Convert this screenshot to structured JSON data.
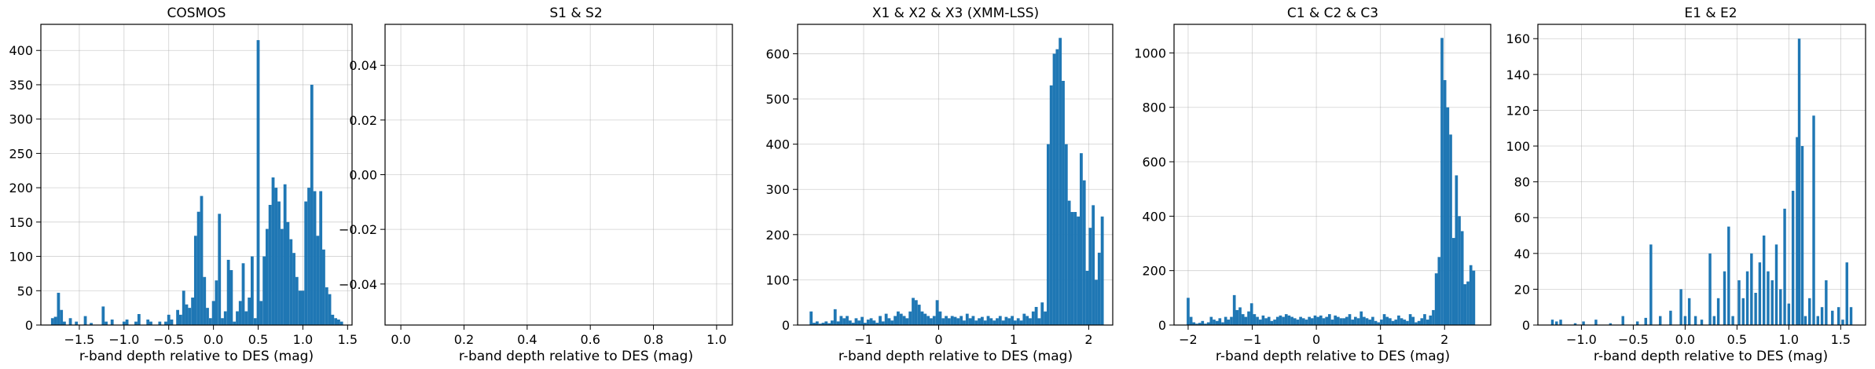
{
  "figure": {
    "accent": "#1f77b4"
  },
  "chart_data": [
    {
      "type": "bar",
      "title": "COSMOS",
      "xlabel": "r-band depth relative to DES (mag)",
      "ylabel": "",
      "xlim": [
        -1.93,
        1.55
      ],
      "ylim": [
        0,
        438
      ],
      "xticks": [
        -1.5,
        -1.0,
        -0.5,
        0.0,
        0.5,
        1.0,
        1.5
      ],
      "xtick_labels": [
        "−1.5",
        "−1.0",
        "−0.5",
        "0.0",
        "0.5",
        "1.0",
        "1.5"
      ],
      "yticks": [
        0,
        50,
        100,
        150,
        200,
        250,
        300,
        350,
        400
      ],
      "ytick_labels": [
        "0",
        "50",
        "100",
        "150",
        "200",
        "250",
        "300",
        "350",
        "400"
      ],
      "grid": true,
      "bin_width": 0.0334,
      "x": [
        -1.8,
        -1.767,
        -1.733,
        -1.7,
        -1.667,
        -1.6,
        -1.533,
        -1.433,
        -1.367,
        -1.233,
        -1.2,
        -1.133,
        -1.0,
        -0.967,
        -0.867,
        -0.833,
        -0.733,
        -0.7,
        -0.6,
        -0.533,
        -0.5,
        -0.467,
        -0.4,
        -0.367,
        -0.333,
        -0.3,
        -0.267,
        -0.233,
        -0.2,
        -0.167,
        -0.133,
        -0.1,
        -0.067,
        -0.033,
        0.0,
        0.033,
        0.067,
        0.1,
        0.133,
        0.167,
        0.2,
        0.233,
        0.267,
        0.3,
        0.333,
        0.367,
        0.4,
        0.433,
        0.467,
        0.5,
        0.533,
        0.567,
        0.6,
        0.633,
        0.667,
        0.7,
        0.733,
        0.767,
        0.8,
        0.833,
        0.867,
        0.9,
        0.933,
        0.967,
        1.0,
        1.033,
        1.067,
        1.1,
        1.133,
        1.167,
        1.2,
        1.233,
        1.267,
        1.3,
        1.333,
        1.367,
        1.4,
        1.433
      ],
      "values": [
        10,
        12,
        47,
        22,
        5,
        10,
        5,
        13,
        3,
        27,
        5,
        8,
        5,
        8,
        5,
        16,
        8,
        5,
        5,
        5,
        15,
        8,
        22,
        15,
        50,
        30,
        25,
        40,
        130,
        165,
        188,
        70,
        25,
        10,
        35,
        65,
        162,
        10,
        20,
        95,
        80,
        5,
        20,
        35,
        90,
        20,
        40,
        100,
        10,
        415,
        35,
        100,
        140,
        175,
        215,
        200,
        180,
        140,
        205,
        150,
        125,
        105,
        70,
        50,
        50,
        180,
        200,
        350,
        195,
        130,
        195,
        110,
        55,
        45,
        15,
        10,
        8,
        5
      ]
    },
    {
      "type": "bar",
      "title": "S1 & S2",
      "xlabel": "r-band depth relative to DES (mag)",
      "ylabel": "",
      "xlim": [
        -0.05,
        1.05
      ],
      "ylim": [
        -0.055,
        0.055
      ],
      "xticks": [
        0.0,
        0.2,
        0.4,
        0.6,
        0.8,
        1.0
      ],
      "xtick_labels": [
        "0.0",
        "0.2",
        "0.4",
        "0.6",
        "0.8",
        "1.0"
      ],
      "yticks": [
        -0.04,
        -0.02,
        0.0,
        0.02,
        0.04
      ],
      "ytick_labels": [
        "−0.04",
        "−0.02",
        "0.00",
        "0.02",
        "0.04"
      ],
      "grid": true,
      "bin_width": 0.01,
      "x": [],
      "values": []
    },
    {
      "type": "bar",
      "title": "X1 & X2 & X3 (XMM-LSS)",
      "xlabel": "r-band depth relative to DES (mag)",
      "ylabel": "",
      "xlim": [
        -1.88,
        2.32
      ],
      "ylim": [
        0,
        665
      ],
      "xticks": [
        -1,
        0,
        1,
        2
      ],
      "xtick_labels": [
        "−1",
        "0",
        "1",
        "2"
      ],
      "yticks": [
        0,
        100,
        200,
        300,
        400,
        500,
        600
      ],
      "ytick_labels": [
        "0",
        "100",
        "200",
        "300",
        "400",
        "500",
        "600"
      ],
      "grid": true,
      "bin_width": 0.04,
      "x": [
        -1.7,
        -1.66,
        -1.62,
        -1.58,
        -1.54,
        -1.5,
        -1.46,
        -1.42,
        -1.38,
        -1.34,
        -1.3,
        -1.26,
        -1.22,
        -1.18,
        -1.14,
        -1.1,
        -1.06,
        -1.02,
        -0.98,
        -0.94,
        -0.9,
        -0.86,
        -0.82,
        -0.78,
        -0.74,
        -0.7,
        -0.66,
        -0.62,
        -0.58,
        -0.54,
        -0.5,
        -0.46,
        -0.42,
        -0.38,
        -0.34,
        -0.3,
        -0.26,
        -0.22,
        -0.18,
        -0.14,
        -0.1,
        -0.06,
        -0.02,
        0.02,
        0.06,
        0.1,
        0.14,
        0.18,
        0.22,
        0.26,
        0.3,
        0.34,
        0.38,
        0.42,
        0.46,
        0.5,
        0.54,
        0.58,
        0.62,
        0.66,
        0.7,
        0.74,
        0.78,
        0.82,
        0.86,
        0.9,
        0.94,
        0.98,
        1.02,
        1.06,
        1.1,
        1.14,
        1.18,
        1.22,
        1.26,
        1.3,
        1.34,
        1.38,
        1.42,
        1.46,
        1.5,
        1.54,
        1.58,
        1.62,
        1.66,
        1.7,
        1.74,
        1.78,
        1.82,
        1.86,
        1.9,
        1.94,
        1.98,
        2.02,
        2.06,
        2.1,
        2.14,
        2.18
      ],
      "values": [
        30,
        5,
        8,
        3,
        5,
        8,
        4,
        10,
        35,
        8,
        20,
        15,
        20,
        10,
        5,
        15,
        10,
        18,
        5,
        12,
        15,
        10,
        5,
        20,
        8,
        25,
        15,
        10,
        20,
        30,
        25,
        20,
        15,
        30,
        60,
        55,
        45,
        30,
        25,
        20,
        15,
        20,
        55,
        30,
        15,
        20,
        15,
        20,
        18,
        15,
        20,
        10,
        25,
        15,
        20,
        10,
        15,
        18,
        10,
        20,
        15,
        10,
        15,
        20,
        10,
        18,
        15,
        20,
        10,
        15,
        10,
        25,
        20,
        15,
        30,
        40,
        15,
        50,
        30,
        400,
        530,
        600,
        610,
        635,
        540,
        400,
        275,
        250,
        250,
        240,
        380,
        320,
        120,
        215,
        265,
        100,
        160,
        240
      ]
    },
    {
      "type": "bar",
      "title": "C1 & C2 & C3",
      "xlabel": "r-band depth relative to DES (mag)",
      "ylabel": "",
      "xlim": [
        -2.22,
        2.72
      ],
      "ylim": [
        0,
        1105
      ],
      "xticks": [
        -2,
        -1,
        0,
        1,
        2
      ],
      "xtick_labels": [
        "−2",
        "−1",
        "0",
        "1",
        "2"
      ],
      "yticks": [
        0,
        200,
        400,
        600,
        800,
        1000
      ],
      "ytick_labels": [
        "0",
        "200",
        "400",
        "600",
        "800",
        "1000"
      ],
      "grid": true,
      "bin_width": 0.045,
      "x": [
        -2.0,
        -1.955,
        -1.91,
        -1.865,
        -1.82,
        -1.775,
        -1.73,
        -1.685,
        -1.64,
        -1.595,
        -1.55,
        -1.505,
        -1.46,
        -1.415,
        -1.37,
        -1.325,
        -1.28,
        -1.235,
        -1.19,
        -1.145,
        -1.1,
        -1.055,
        -1.01,
        -0.965,
        -0.92,
        -0.875,
        -0.83,
        -0.785,
        -0.74,
        -0.695,
        -0.65,
        -0.605,
        -0.56,
        -0.515,
        -0.47,
        -0.425,
        -0.38,
        -0.335,
        -0.29,
        -0.245,
        -0.2,
        -0.155,
        -0.11,
        -0.065,
        -0.02,
        0.025,
        0.07,
        0.115,
        0.16,
        0.205,
        0.25,
        0.295,
        0.34,
        0.385,
        0.43,
        0.475,
        0.52,
        0.565,
        0.61,
        0.655,
        0.7,
        0.745,
        0.79,
        0.835,
        0.88,
        0.925,
        0.97,
        1.015,
        1.06,
        1.105,
        1.15,
        1.195,
        1.24,
        1.285,
        1.33,
        1.375,
        1.42,
        1.465,
        1.51,
        1.555,
        1.6,
        1.645,
        1.69,
        1.735,
        1.78,
        1.825,
        1.87,
        1.915,
        1.96,
        2.005,
        2.05,
        2.095,
        2.14,
        2.185,
        2.23,
        2.275,
        2.32,
        2.365,
        2.41,
        2.455
      ],
      "values": [
        100,
        30,
        10,
        5,
        8,
        15,
        5,
        10,
        30,
        20,
        15,
        25,
        10,
        30,
        20,
        30,
        110,
        55,
        65,
        40,
        30,
        50,
        80,
        40,
        30,
        20,
        35,
        25,
        30,
        15,
        20,
        30,
        35,
        30,
        40,
        35,
        30,
        25,
        20,
        30,
        25,
        20,
        30,
        25,
        35,
        30,
        35,
        25,
        30,
        40,
        20,
        35,
        30,
        25,
        25,
        30,
        40,
        20,
        30,
        25,
        50,
        30,
        25,
        20,
        30,
        15,
        10,
        20,
        40,
        30,
        25,
        15,
        20,
        35,
        25,
        20,
        15,
        40,
        30,
        10,
        15,
        25,
        40,
        20,
        35,
        55,
        190,
        250,
        1055,
        900,
        800,
        700,
        320,
        550,
        400,
        345,
        150,
        160,
        220,
        200
      ]
    },
    {
      "type": "bar",
      "title": "E1 & E2",
      "xlabel": "r-band depth relative to DES (mag)",
      "ylabel": "",
      "xlim": [
        -1.42,
        1.74
      ],
      "ylim": [
        0,
        168
      ],
      "xticks": [
        -1.0,
        -0.5,
        0.0,
        0.5,
        1.0,
        1.5
      ],
      "xtick_labels": [
        "−1.0",
        "−0.5",
        "0.0",
        "0.5",
        "1.0",
        "1.5"
      ],
      "yticks": [
        0,
        20,
        40,
        60,
        80,
        100,
        120,
        140,
        160
      ],
      "ytick_labels": [
        "0",
        "20",
        "40",
        "60",
        "80",
        "100",
        "120",
        "140",
        "160"
      ],
      "grid": true,
      "bin_width": 0.026,
      "x": [
        -1.28,
        -1.24,
        -1.2,
        -1.06,
        -0.98,
        -0.86,
        -0.72,
        -0.6,
        -0.46,
        -0.38,
        -0.33,
        -0.24,
        -0.14,
        -0.04,
        0.0,
        0.04,
        0.1,
        0.16,
        0.24,
        0.28,
        0.32,
        0.38,
        0.42,
        0.46,
        0.52,
        0.56,
        0.6,
        0.64,
        0.68,
        0.72,
        0.76,
        0.8,
        0.84,
        0.88,
        0.92,
        0.96,
        1.0,
        1.04,
        1.08,
        1.1,
        1.13,
        1.16,
        1.2,
        1.24,
        1.28,
        1.32,
        1.36,
        1.42,
        1.48,
        1.52,
        1.56,
        1.6
      ],
      "values": [
        3,
        2,
        3,
        1,
        2,
        3,
        1,
        5,
        2,
        4,
        45,
        5,
        8,
        20,
        5,
        15,
        5,
        3,
        40,
        5,
        15,
        30,
        55,
        5,
        25,
        15,
        30,
        40,
        18,
        35,
        50,
        30,
        25,
        45,
        20,
        65,
        12,
        75,
        105,
        160,
        100,
        5,
        15,
        117,
        5,
        10,
        25,
        8,
        10,
        3,
        35,
        10
      ]
    }
  ]
}
